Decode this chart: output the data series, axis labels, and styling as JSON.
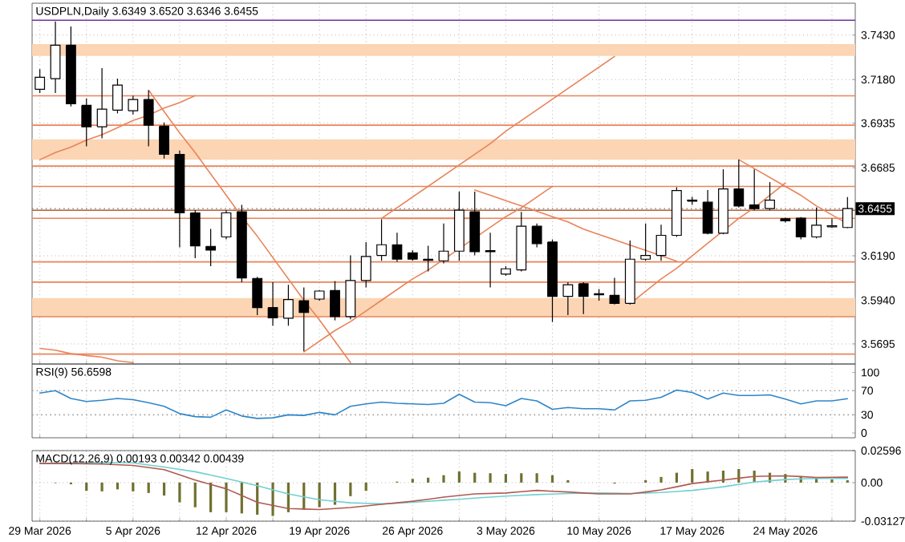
{
  "chart_data": [
    {
      "type": "candlestick",
      "title": "USDPLN,Daily  3.6349 3.6520 3.6346 3.6455",
      "categories": [
        null,
        null,
        null,
        null,
        null,
        null,
        null,
        null,
        null,
        null,
        null,
        null,
        null,
        null,
        null,
        null,
        null,
        null,
        null,
        null,
        null,
        null,
        null,
        null,
        null,
        null,
        null,
        null,
        null,
        null,
        null,
        null,
        null,
        null,
        null,
        null,
        null,
        null,
        null,
        null,
        null,
        null,
        null,
        null,
        null,
        null,
        null,
        null,
        null,
        null,
        null,
        null,
        null
      ],
      "ohlc": [
        [
          3.7125,
          3.7238,
          3.7104,
          3.7193
        ],
        [
          3.7185,
          3.7507,
          3.7104,
          3.7373
        ],
        [
          3.7373,
          3.7478,
          3.7029,
          3.7044
        ],
        [
          3.7035,
          3.7074,
          3.6805,
          3.6915
        ],
        [
          3.6915,
          3.7244,
          3.685,
          3.7014
        ],
        [
          3.7008,
          3.7185,
          3.699,
          3.7149
        ],
        [
          3.7005,
          3.7089,
          3.6984,
          3.7068
        ],
        [
          3.7068,
          3.7119,
          3.6805,
          3.6924
        ],
        [
          3.6918,
          3.6939,
          3.6736,
          3.676
        ],
        [
          3.676,
          3.6781,
          3.6237,
          3.6431
        ],
        [
          3.6431,
          3.6446,
          3.6177,
          3.6246
        ],
        [
          3.6243,
          3.6341,
          3.6132,
          3.6222
        ],
        [
          3.6296,
          3.6446,
          3.6282,
          3.6431
        ],
        [
          3.6437,
          3.6476,
          3.6042,
          3.6066
        ],
        [
          3.6063,
          3.6072,
          3.5857,
          3.5899
        ],
        [
          3.5899,
          3.6042,
          3.5797,
          3.5842
        ],
        [
          3.5839,
          3.6027,
          3.5797,
          3.5944
        ],
        [
          3.5938,
          3.6012,
          3.5654,
          3.5872
        ],
        [
          3.5947,
          3.5997,
          3.5938,
          3.5992
        ],
        [
          3.5995,
          3.6048,
          3.5827,
          3.5848
        ],
        [
          3.5848,
          3.6192,
          3.5833,
          3.6051
        ],
        [
          3.6051,
          3.6267,
          3.6012,
          3.6186
        ],
        [
          3.6192,
          3.6395,
          3.6162,
          3.6252
        ],
        [
          3.6252,
          3.632,
          3.6156,
          3.6171
        ],
        [
          3.6207,
          3.6222,
          3.6162,
          3.6171
        ],
        [
          3.6171,
          3.6246,
          3.6102,
          3.6165
        ],
        [
          3.6162,
          3.6371,
          3.6147,
          3.6216
        ],
        [
          3.6216,
          3.6551,
          3.6162,
          3.6446
        ],
        [
          3.6437,
          3.6551,
          3.6192,
          3.6213
        ],
        [
          3.6219,
          3.632,
          3.6012,
          3.6213
        ],
        [
          3.6087,
          3.6132,
          3.6078,
          3.6117
        ],
        [
          3.6111,
          3.6437,
          3.6102,
          3.6356
        ],
        [
          3.6356,
          3.6371,
          3.6237,
          3.6258
        ],
        [
          3.6267,
          3.6282,
          3.5818,
          3.5962
        ],
        [
          3.5962,
          3.6042,
          3.5857,
          3.6027
        ],
        [
          3.6033,
          3.6042,
          3.5863,
          3.5962
        ],
        [
          3.5977,
          3.6003,
          3.5938,
          3.5971
        ],
        [
          3.5968,
          3.6066,
          3.5917,
          3.5923
        ],
        [
          3.5923,
          3.6276,
          3.5917,
          3.6171
        ],
        [
          3.6171,
          3.6371,
          3.6162,
          3.6192
        ],
        [
          3.6192,
          3.6365,
          3.6162,
          3.6305
        ],
        [
          3.6305,
          3.6575,
          3.6296,
          3.6557
        ],
        [
          3.6497,
          3.6521,
          3.6476,
          3.6503
        ],
        [
          3.6491,
          3.656,
          3.6311,
          3.6317
        ],
        [
          3.6317,
          3.6676,
          3.6311,
          3.6566
        ],
        [
          3.6566,
          3.673,
          3.6461,
          3.647
        ],
        [
          3.6476,
          3.6676,
          3.6446,
          3.6455
        ],
        [
          3.6455,
          3.6604,
          3.6446,
          3.6503
        ],
        [
          3.6398,
          3.6404,
          3.6377,
          3.6386
        ],
        [
          3.6401,
          3.6407,
          3.6282,
          3.6296
        ],
        [
          3.6296,
          3.6461,
          3.6288,
          3.6362
        ],
        [
          3.6353,
          3.6398,
          3.6347,
          3.6359
        ],
        [
          3.6349,
          3.652,
          3.6346,
          3.6455
        ]
      ],
      "ylim": [
        3.5582,
        3.7609
      ],
      "yticks": [
        {
          "value": 3.743,
          "label": "3.7430"
        },
        {
          "value": 3.718,
          "label": "3.7180"
        },
        {
          "value": 3.6935,
          "label": "3.6935"
        },
        {
          "value": 3.6685,
          "label": "3.6685"
        },
        {
          "value": 3.619,
          "label": "3.6190"
        },
        {
          "value": 3.594,
          "label": "3.5940"
        },
        {
          "value": 3.5695,
          "label": "3.5695"
        }
      ],
      "grid": true,
      "tick_labels": "y",
      "bands": [
        {
          "axis": "y",
          "from": 3.7313,
          "to": 3.7379,
          "color": "#fcd5b4"
        },
        {
          "axis": "y",
          "from": 3.673,
          "to": 3.6844,
          "color": "#fcd5b4"
        },
        {
          "axis": "y",
          "from": 3.5848,
          "to": 3.5953,
          "color": "#fcd5b4"
        }
      ],
      "ref_lines": [
        {
          "axis": "y",
          "value": 3.7513,
          "color": "#7030a0"
        },
        {
          "axis": "y",
          "value": 3.7089,
          "color": "#e8845a"
        },
        {
          "axis": "y",
          "value": 3.6924,
          "color": "#e8845a"
        },
        {
          "axis": "y",
          "value": 3.6694,
          "color": "#e8845a"
        },
        {
          "axis": "y",
          "value": 3.658,
          "color": "#e8845a"
        },
        {
          "axis": "y",
          "value": 3.6446,
          "color": "#b0603a"
        },
        {
          "axis": "y",
          "value": 3.6401,
          "color": "#e8845a"
        },
        {
          "axis": "y",
          "value": 3.6156,
          "color": "#e8845a"
        },
        {
          "axis": "y",
          "value": 3.6042,
          "color": "#e8845a"
        },
        {
          "axis": "y",
          "value": 3.5848,
          "color": "#e8845a"
        },
        {
          "axis": "y",
          "value": 3.5638,
          "color": "#e8845a"
        },
        {
          "axis": "y",
          "value": 3.6455,
          "label": "3.6455",
          "color": "#909090",
          "line_style": "dotted"
        }
      ],
      "series": [
        {
          "type": "line",
          "color": "#e8845a",
          "values": [
            3.673,
            3.677,
            3.68,
            3.684,
            3.687,
            3.691,
            3.695,
            3.698,
            3.702,
            3.705,
            3.709,
            null,
            null,
            null,
            null,
            null,
            null,
            null,
            null,
            null,
            null,
            null,
            null,
            null,
            null,
            null,
            null,
            null,
            null,
            null,
            null,
            null,
            null,
            null,
            null,
            null,
            null,
            null,
            null,
            null,
            null,
            null,
            null,
            null,
            null,
            null,
            null,
            null,
            null,
            null,
            null,
            null,
            null
          ]
        },
        {
          "type": "line",
          "color": "#e8845a",
          "values": [
            null,
            null,
            null,
            null,
            null,
            null,
            null,
            3.712,
            3.7,
            3.688,
            3.677,
            3.665,
            3.653,
            3.641,
            3.63,
            3.618,
            3.606,
            3.594,
            3.583,
            3.571,
            3.559,
            null,
            null,
            null,
            null,
            null,
            null,
            null,
            null,
            null,
            null,
            null,
            null,
            null,
            null,
            null,
            null,
            null,
            null,
            null,
            null,
            null,
            null,
            null,
            null,
            null,
            null,
            null,
            null,
            null,
            null,
            null,
            null
          ]
        },
        {
          "type": "line",
          "color": "#e8845a",
          "values": [
            null,
            null,
            null,
            null,
            null,
            null,
            null,
            null,
            null,
            null,
            null,
            null,
            null,
            null,
            null,
            null,
            null,
            3.565,
            3.571,
            3.577,
            3.582,
            3.588,
            3.594,
            3.6,
            3.606,
            3.611,
            3.617,
            3.623,
            3.629,
            3.635,
            3.641,
            3.646,
            3.652,
            3.658,
            null,
            null,
            null,
            null,
            null,
            null,
            null,
            null,
            null,
            null,
            null,
            null,
            null,
            null,
            null,
            null,
            null,
            null,
            null
          ]
        },
        {
          "type": "line",
          "color": "#e8845a",
          "values": [
            null,
            null,
            null,
            null,
            null,
            null,
            null,
            null,
            null,
            null,
            null,
            null,
            null,
            null,
            null,
            null,
            null,
            null,
            null,
            null,
            null,
            null,
            3.64,
            3.646,
            3.652,
            3.658,
            3.664,
            3.67,
            3.676,
            3.682,
            3.689,
            3.695,
            3.701,
            3.707,
            3.713,
            3.719,
            3.725,
            3.731,
            null,
            null,
            null,
            null,
            null,
            null,
            null,
            null,
            null,
            null,
            null,
            null,
            null,
            null,
            null
          ]
        },
        {
          "type": "line",
          "color": "#e8845a",
          "values": [
            null,
            null,
            null,
            null,
            null,
            null,
            null,
            null,
            null,
            null,
            null,
            null,
            null,
            null,
            null,
            null,
            null,
            null,
            null,
            null,
            null,
            null,
            3.64,
            3.64,
            3.64,
            3.64,
            3.64,
            3.64,
            3.64,
            null,
            null,
            null,
            null,
            null,
            null,
            null,
            null,
            null,
            null,
            null,
            null,
            null,
            null,
            null,
            null,
            null,
            null,
            null,
            null,
            null,
            null,
            null,
            null
          ]
        },
        {
          "type": "line",
          "color": "#e8845a",
          "values": [
            null,
            null,
            null,
            null,
            null,
            null,
            null,
            null,
            null,
            null,
            null,
            null,
            null,
            null,
            null,
            null,
            null,
            null,
            null,
            null,
            null,
            null,
            null,
            null,
            null,
            null,
            null,
            null,
            3.656,
            3.653,
            3.65,
            3.647,
            3.644,
            3.641,
            3.638,
            3.634,
            3.631,
            3.628,
            3.625,
            3.622,
            3.619,
            3.616,
            null,
            null,
            null,
            null,
            null,
            null,
            null,
            null,
            null,
            null,
            null
          ]
        },
        {
          "type": "line",
          "color": "#e8845a",
          "values": [
            null,
            null,
            null,
            null,
            null,
            null,
            null,
            null,
            null,
            null,
            null,
            null,
            null,
            null,
            null,
            null,
            null,
            null,
            null,
            null,
            null,
            null,
            null,
            null,
            null,
            null,
            null,
            null,
            null,
            null,
            null,
            null,
            null,
            null,
            null,
            null,
            null,
            null,
            3.592,
            3.599,
            3.606,
            3.612,
            3.619,
            3.626,
            3.633,
            3.64,
            3.646,
            3.653,
            3.66,
            null,
            null,
            null,
            null
          ]
        },
        {
          "type": "line",
          "color": "#e8845a",
          "values": [
            null,
            null,
            null,
            null,
            null,
            null,
            null,
            null,
            null,
            null,
            null,
            null,
            null,
            null,
            null,
            null,
            null,
            null,
            null,
            null,
            null,
            null,
            null,
            null,
            null,
            null,
            null,
            null,
            null,
            null,
            null,
            null,
            null,
            null,
            null,
            null,
            null,
            null,
            null,
            null,
            null,
            null,
            null,
            null,
            null,
            3.673,
            3.668,
            3.663,
            3.658,
            3.653,
            3.647,
            3.642,
            3.637
          ]
        },
        {
          "type": "line",
          "color": "#e8845a",
          "values": [
            3.567,
            3.566,
            3.564,
            3.563,
            3.562,
            3.56,
            3.559,
            null,
            null,
            null,
            null,
            null,
            null,
            null,
            null,
            null,
            null,
            null,
            null,
            null,
            null,
            null,
            null,
            null,
            null,
            null,
            null,
            null,
            null,
            null,
            null,
            null,
            null,
            null,
            null,
            null,
            null,
            null,
            null,
            null,
            null,
            null,
            null,
            null,
            null,
            null,
            null,
            null,
            null,
            null,
            null,
            null,
            null
          ]
        }
      ]
    },
    {
      "type": "line",
      "title": "RSI(9) 56.6598",
      "categories": [
        null,
        null,
        null,
        null,
        null,
        null,
        null,
        null,
        null,
        null,
        null,
        null,
        null,
        null,
        null,
        null,
        null,
        null,
        null,
        null,
        null,
        null,
        null,
        null,
        null,
        null,
        null,
        null,
        null,
        null,
        null,
        null,
        null,
        null,
        null,
        null,
        null,
        null,
        null,
        null,
        null,
        null,
        null,
        null,
        null,
        null,
        null,
        null,
        null,
        null,
        null,
        null,
        null
      ],
      "values": [
        66,
        70,
        57,
        52,
        54,
        57,
        55,
        50,
        44,
        32,
        27,
        26,
        38,
        28,
        24,
        25,
        30,
        29,
        34,
        30,
        44,
        48,
        51,
        49,
        48,
        47,
        49,
        64,
        51,
        50,
        45,
        57,
        53,
        39,
        42,
        40,
        40,
        38,
        53,
        54,
        59,
        71,
        67,
        56,
        66,
        62,
        62,
        63,
        56,
        48,
        53,
        53,
        56.6598
      ],
      "color": "#2e86c9",
      "ylim": [
        -8,
        114
      ],
      "yticks": [
        0,
        30,
        70,
        100
      ],
      "grid": "x",
      "tick_labels": "y",
      "ref_lines": [
        {
          "axis": "y",
          "value": 30,
          "color": "#a0a0a0",
          "line_style": "dotted"
        },
        {
          "axis": "y",
          "value": 70,
          "color": "#a0a0a0",
          "line_style": "dotted"
        }
      ]
    },
    {
      "type": "bar",
      "title": "MACD(12,26,9) 0.00193 0.00342 0.00439",
      "categories": [
        "29 Mar 2026",
        null,
        null,
        null,
        null,
        null,
        "5 Apr 2026",
        null,
        null,
        null,
        null,
        null,
        "12 Apr 2026",
        null,
        null,
        null,
        null,
        null,
        "19 Apr 2026",
        null,
        null,
        null,
        null,
        null,
        "26 Apr 2026",
        null,
        null,
        null,
        null,
        null,
        "3 May 2026",
        null,
        null,
        null,
        null,
        null,
        "10 May 2026",
        null,
        null,
        null,
        null,
        null,
        "17 May 2026",
        null,
        null,
        null,
        null,
        null,
        "24 May 2026",
        null,
        null,
        null,
        null
      ],
      "series": [
        {
          "type": "bar",
          "color": "#707030",
          "values": [
            null,
            -0.0004,
            -0.0013,
            -0.0067,
            -0.0071,
            -0.0055,
            -0.0071,
            -0.0084,
            -0.0105,
            -0.016,
            -0.02,
            -0.024,
            -0.024,
            -0.025,
            -0.026,
            -0.027,
            -0.024,
            -0.022,
            -0.02,
            -0.018,
            -0.011,
            -0.0067,
            0,
            0.0008,
            0.003,
            0.004,
            0.006,
            0.009,
            0.008,
            0.0076,
            0.007,
            0.0076,
            0.0076,
            0.006,
            0.002,
            0,
            0,
            -0.0008,
            null,
            0.002,
            0.0046,
            0.008,
            0.011,
            0.009,
            0.0097,
            0.011,
            0.0097,
            0.008,
            0.007,
            0.005,
            0.004,
            0.0025,
            0.00193
          ]
        },
        {
          "type": "line",
          "color": "#6fd0d0",
          "values": [
            0.0155,
            0.0158,
            0.016,
            0.0162,
            0.0164,
            0.0162,
            0.016,
            0.0143,
            0.0126,
            0.0107,
            0.0088,
            0.0061,
            0.0034,
            0.0005,
            -0.0025,
            -0.0059,
            -0.0092,
            -0.0116,
            -0.0139,
            -0.0152,
            -0.0164,
            -0.0168,
            -0.0172,
            -0.0166,
            -0.016,
            -0.0152,
            -0.0143,
            -0.0135,
            -0.0126,
            -0.0118,
            -0.0109,
            -0.0103,
            -0.0097,
            -0.0093,
            -0.0088,
            -0.0086,
            -0.0084,
            -0.0086,
            -0.0088,
            -0.0084,
            -0.008,
            -0.0072,
            -0.0063,
            -0.0049,
            -0.0034,
            -0.0015,
            0.0004,
            0.0015,
            0.0025,
            0.003,
            0.0034,
            0.0034,
            0.00342
          ]
        },
        {
          "type": "line",
          "color": "#b05a50",
          "values": [
            0.0155,
            0.0155,
            0.0155,
            0.0153,
            0.0151,
            0.0145,
            0.0139,
            0.0122,
            0.0105,
            0.0063,
            0.0021,
            -0.0015,
            -0.005,
            -0.0105,
            -0.016,
            -0.0185,
            -0.021,
            -0.0214,
            -0.0218,
            -0.021,
            -0.0202,
            -0.0189,
            -0.0176,
            -0.0164,
            -0.0151,
            -0.0135,
            -0.0118,
            -0.0105,
            -0.0092,
            -0.0088,
            -0.0084,
            -0.0074,
            -0.0063,
            -0.007,
            -0.0076,
            -0.0084,
            -0.0092,
            -0.0092,
            -0.0092,
            -0.0076,
            -0.0059,
            -0.0034,
            -0.0008,
            0.0007,
            0.0021,
            0.0036,
            0.005,
            0.0053,
            0.0055,
            0.0049,
            0.0042,
            0.0043,
            0.00439
          ]
        }
      ],
      "ylim": [
        -0.03127,
        0.02596
      ],
      "yticks": [
        0.02596,
        {
          "value": 0,
          "label": "0.00"
        },
        -0.03127
      ],
      "grid": true
    }
  ]
}
